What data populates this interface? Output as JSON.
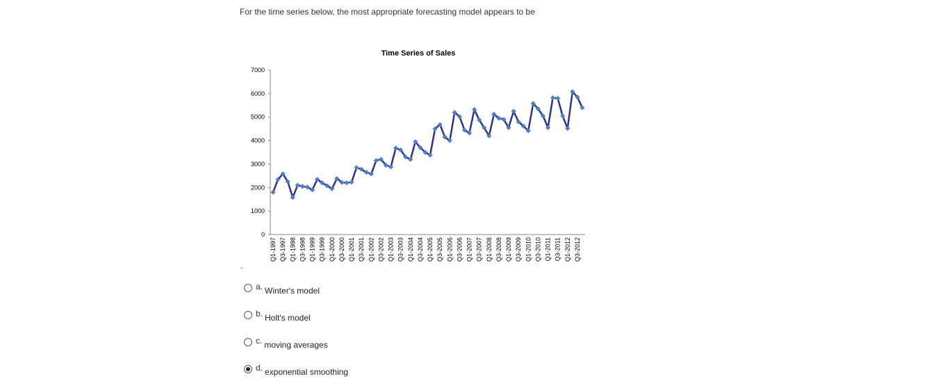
{
  "question": {
    "text": "For the time series below, the most appropriate forecasting model appears to be"
  },
  "chart_data": {
    "type": "line",
    "title": "Time Series of Sales",
    "xlabel": "",
    "ylabel": "",
    "ylim": [
      0,
      7000
    ],
    "yticks": [
      0,
      1000,
      2000,
      3000,
      4000,
      5000,
      6000,
      7000
    ],
    "categories": [
      "Q1-1997",
      "Q2-1997",
      "Q3-1997",
      "Q4-1997",
      "Q1-1998",
      "Q2-1998",
      "Q3-1998",
      "Q4-1998",
      "Q1-1999",
      "Q2-1999",
      "Q3-1999",
      "Q4-1999",
      "Q1-2000",
      "Q2-2000",
      "Q3-2000",
      "Q4-2000",
      "Q1-2001",
      "Q2-2001",
      "Q3-2001",
      "Q4-2001",
      "Q1-2002",
      "Q2-2002",
      "Q3-2002",
      "Q4-2002",
      "Q1-2003",
      "Q2-2003",
      "Q3-2003",
      "Q4-2003",
      "Q1-2004",
      "Q2-2004",
      "Q3-2004",
      "Q4-2004",
      "Q1-2005",
      "Q2-2005",
      "Q3-2005",
      "Q4-2005",
      "Q1-2006",
      "Q2-2006",
      "Q3-2006",
      "Q4-2006",
      "Q1-2007",
      "Q2-2007",
      "Q3-2007",
      "Q4-2007",
      "Q1-2008",
      "Q2-2008",
      "Q3-2008",
      "Q4-2008",
      "Q1-2009",
      "Q2-2009",
      "Q3-2009",
      "Q4-2009",
      "Q1-2010",
      "Q2-2010",
      "Q3-2010",
      "Q4-2010",
      "Q1-2011",
      "Q2-2011",
      "Q3-2011",
      "Q4-2011",
      "Q1-2012",
      "Q2-2012",
      "Q3-2012",
      "Q4-2012"
    ],
    "tick_labels": [
      "Q1-1997",
      "Q3-1997",
      "Q1-1998",
      "Q3-1998",
      "Q1-1999",
      "Q3-1999",
      "Q1-2000",
      "Q3-2000",
      "Q1-2001",
      "Q3-2001",
      "Q1-2002",
      "Q3-2002",
      "Q1-2003",
      "Q3-2003",
      "Q1-2004",
      "Q3-2004",
      "Q1-2005",
      "Q3-2005",
      "Q1-2006",
      "Q3-2006",
      "Q1-2007",
      "Q3-2007",
      "Q1-2008",
      "Q3-2008",
      "Q1-2009",
      "Q3-2009",
      "Q1-2010",
      "Q3-2010",
      "Q1-2011",
      "Q3-2011",
      "Q1-2012",
      "Q3-2012"
    ],
    "series": [
      {
        "name": "Sales",
        "values": [
          1800,
          2350,
          2580,
          2250,
          1580,
          2100,
          2050,
          2020,
          1900,
          2350,
          2200,
          2080,
          1950,
          2380,
          2220,
          2200,
          2230,
          2850,
          2780,
          2650,
          2580,
          3150,
          3200,
          2950,
          2880,
          3680,
          3600,
          3300,
          3200,
          3950,
          3700,
          3500,
          3380,
          4500,
          4680,
          4150,
          4000,
          5200,
          5020,
          4450,
          4320,
          5320,
          4880,
          4550,
          4200,
          5120,
          4950,
          4900,
          4550,
          5250,
          4800,
          4620,
          4420,
          5580,
          5350,
          5050,
          4550,
          5820,
          5800,
          5050,
          4520,
          6080,
          5850,
          5400
        ]
      }
    ],
    "line_color": "#2e3192",
    "marker_color": "#4f81bd",
    "grid": false,
    "legend": "none"
  },
  "options": [
    {
      "letter": "a.",
      "text": "Winter's model",
      "checked": false
    },
    {
      "letter": "b.",
      "text": "Holt's model",
      "checked": false
    },
    {
      "letter": "c.",
      "text": "moving averages",
      "checked": false
    },
    {
      "letter": "d.",
      "text": "exponential smoothing",
      "checked": true
    }
  ]
}
